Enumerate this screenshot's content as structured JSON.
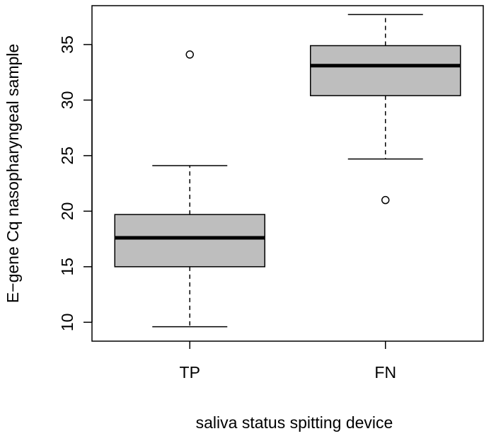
{
  "chart_data": {
    "type": "box",
    "xlabel": "saliva status spitting device",
    "ylabel": "E−gene Cq nasopharyngeal sample",
    "categories": [
      "TP",
      "FN"
    ],
    "ylim": [
      8.3,
      38.5
    ],
    "yticks": [
      10,
      15,
      20,
      25,
      30,
      35
    ],
    "grid": false,
    "box_fill": "#bebebe",
    "groups": [
      {
        "label": "TP",
        "whisker_low": 9.6,
        "q1": 15.0,
        "median": 17.6,
        "q3": 19.7,
        "whisker_high": 24.1,
        "outliers": [
          34.1
        ]
      },
      {
        "label": "FN",
        "whisker_low": 24.7,
        "q1": 30.4,
        "median": 33.1,
        "q3": 34.9,
        "whisker_high": 37.7,
        "outliers": [
          21.0
        ]
      }
    ]
  }
}
